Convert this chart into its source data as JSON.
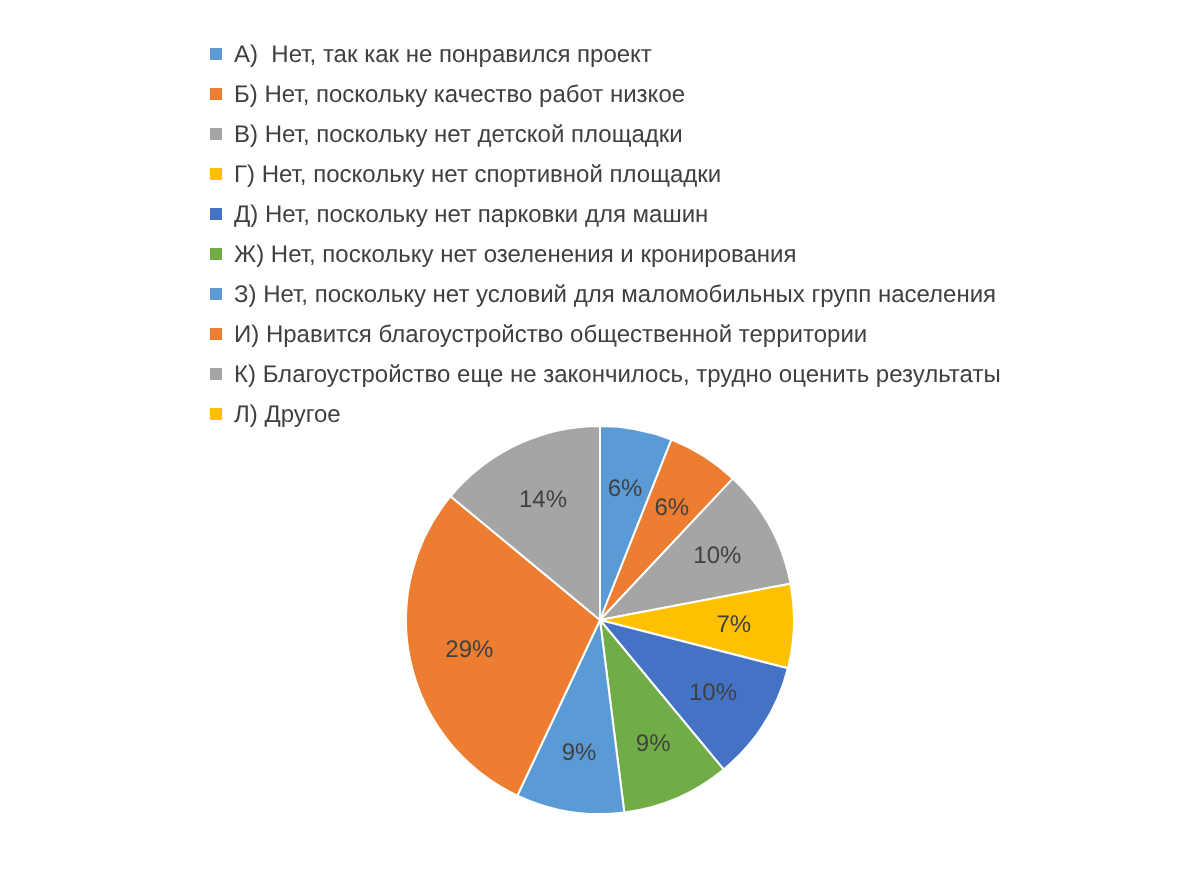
{
  "chart_data": {
    "type": "pie",
    "categories": [
      "А)  Нет, так как не понравился проект",
      "Б) Нет, поскольку качество работ низкое",
      "В) Нет, поскольку нет детской площадки",
      "Г) Нет, поскольку нет спортивной площадки",
      "Д) Нет, поскольку нет парковки для машин",
      "Ж) Нет, поскольку нет озеленения и кронирования",
      "З) Нет, поскольку нет условий для маломобильных групп населения",
      "И) Нравится благоустройство общественной территории",
      "К) Благоустройство еще не закончилось, трудно оценить результаты",
      "Л) Другое"
    ],
    "values": [
      6,
      6,
      10,
      7,
      10,
      9,
      9,
      29,
      14,
      0
    ],
    "colors": [
      "#5b9bd5",
      "#ed7d31",
      "#a5a5a5",
      "#ffc000",
      "#4472c4",
      "#70ad47",
      "#5b9bd5",
      "#ed7d31",
      "#a5a5a5",
      "#ffc000"
    ],
    "value_labels": [
      "6%",
      "6%",
      "10%",
      "7%",
      "10%",
      "9%",
      "9%",
      "29%",
      "14%",
      null
    ],
    "legend": "top"
  }
}
